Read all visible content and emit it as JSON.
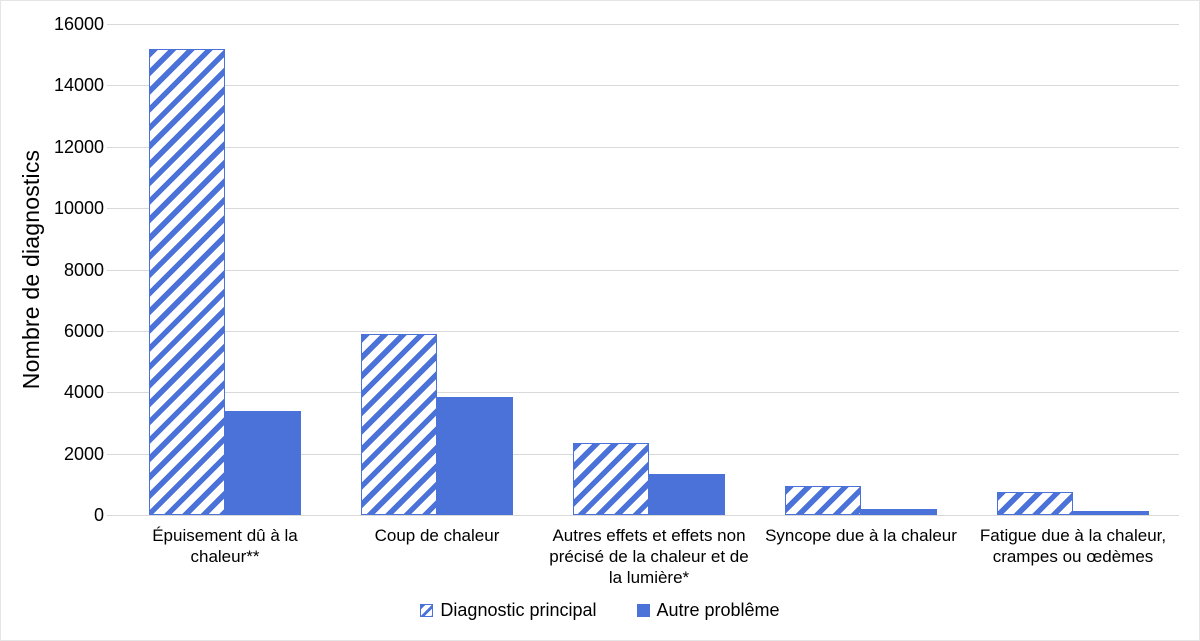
{
  "chart_data": {
    "type": "bar",
    "title": "",
    "xlabel": "",
    "ylabel": "Nombre de diagnostics",
    "ylim": [
      0,
      16000
    ],
    "ytick_step": 2000,
    "ytick_labels": [
      "0",
      "2000",
      "4000",
      "6000",
      "8000",
      "10000",
      "12000",
      "14000",
      "16000"
    ],
    "grid": true,
    "legend_position": "bottom",
    "categories": [
      "Épuisement dû à la chaleur**",
      "Coup de chaleur",
      "Autres effets et effets non précisé de la chaleur et de la lumière*",
      "Syncope due à la chaleur",
      "Fatigue due à la chaleur, crampes ou œdèmes"
    ],
    "series": [
      {
        "name": "Diagnostic principal",
        "style": "hatched",
        "values": [
          15200,
          5900,
          2350,
          950,
          750
        ]
      },
      {
        "name": "Autre problême",
        "style": "solid",
        "values": [
          3400,
          3850,
          1350,
          200,
          130
        ]
      }
    ],
    "colors": {
      "bar_blue": "#4a72d8",
      "gridline": "#d9d9d9",
      "text": "#000000",
      "frame_border": "#e5e5e5"
    }
  }
}
